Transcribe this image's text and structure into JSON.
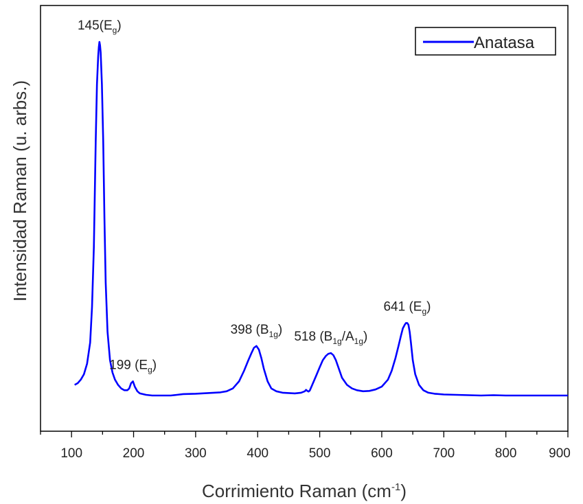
{
  "chart_data": {
    "type": "line",
    "title": "",
    "xlabel": "Corrimiento Raman (cm",
    "xlabel_sup": "-1",
    "xlabel_suffix": ")",
    "ylabel": "Intensidad Raman (u. arbs.)",
    "xlim": [
      50,
      900
    ],
    "ylim": [
      0,
      1
    ],
    "x_ticks": [
      100,
      200,
      300,
      400,
      500,
      600,
      700,
      800,
      900
    ],
    "y_ticks_shown": false,
    "grid": false,
    "legend": {
      "position": "top-right"
    },
    "series": [
      {
        "name": "Anatasa",
        "color": "#0000ff",
        "x": [
          105,
          110,
          115,
          120,
          125,
          130,
          133,
          136,
          139,
          141,
          143,
          144,
          145,
          146,
          147,
          149,
          151,
          153,
          155,
          158,
          162,
          166,
          170,
          175,
          180,
          185,
          190,
          193,
          196,
          199,
          202,
          206,
          210,
          220,
          230,
          240,
          250,
          260,
          270,
          280,
          300,
          320,
          340,
          350,
          360,
          370,
          378,
          385,
          390,
          394,
          398,
          402,
          406,
          410,
          416,
          422,
          430,
          440,
          450,
          460,
          470,
          476,
          478,
          480,
          482,
          484,
          488,
          494,
          500,
          505,
          510,
          514,
          518,
          522,
          526,
          530,
          536,
          544,
          552,
          560,
          570,
          580,
          590,
          600,
          610,
          616,
          622,
          627,
          631,
          634,
          637,
          639,
          641,
          643,
          645,
          647,
          650,
          654,
          660,
          667,
          675,
          685,
          700,
          720,
          740,
          760,
          780,
          800,
          820,
          840,
          860,
          880,
          900
        ],
        "y": [
          0.03,
          0.035,
          0.045,
          0.06,
          0.09,
          0.15,
          0.25,
          0.42,
          0.72,
          0.88,
          0.96,
          0.985,
          1.0,
          0.99,
          0.97,
          0.88,
          0.72,
          0.5,
          0.32,
          0.18,
          0.1,
          0.065,
          0.045,
          0.03,
          0.02,
          0.015,
          0.015,
          0.02,
          0.035,
          0.04,
          0.025,
          0.012,
          0.006,
          0.002,
          0.0,
          0.0,
          0.0,
          0.0,
          0.002,
          0.004,
          0.005,
          0.007,
          0.009,
          0.012,
          0.02,
          0.04,
          0.07,
          0.1,
          0.12,
          0.135,
          0.14,
          0.13,
          0.105,
          0.075,
          0.04,
          0.02,
          0.012,
          0.008,
          0.007,
          0.006,
          0.008,
          0.012,
          0.016,
          0.013,
          0.011,
          0.014,
          0.03,
          0.055,
          0.08,
          0.1,
          0.112,
          0.118,
          0.12,
          0.114,
          0.1,
          0.08,
          0.05,
          0.03,
          0.02,
          0.015,
          0.012,
          0.013,
          0.017,
          0.025,
          0.045,
          0.07,
          0.105,
          0.14,
          0.17,
          0.19,
          0.2,
          0.205,
          0.205,
          0.2,
          0.18,
          0.15,
          0.1,
          0.06,
          0.03,
          0.015,
          0.008,
          0.005,
          0.003,
          0.002,
          0.001,
          0.0,
          0.001,
          0.0,
          0.0,
          0.0,
          0.0,
          0.0,
          0.0
        ]
      }
    ],
    "annotations": [
      {
        "x": 145,
        "y": 1.0,
        "text": "145(E",
        "sub": "g",
        "suffix": ")"
      },
      {
        "x": 199,
        "y": 0.04,
        "text": "199 (E",
        "sub": "g",
        "suffix": ")"
      },
      {
        "x": 398,
        "y": 0.14,
        "text": "398 (B",
        "sub": "1g",
        "suffix": ")"
      },
      {
        "x": 518,
        "y": 0.12,
        "text": "518 (B",
        "sub": "1g",
        "mid": "/A",
        "sub2": "1g",
        "suffix": ")"
      },
      {
        "x": 641,
        "y": 0.205,
        "text": "641 (E",
        "sub": "g",
        "suffix": ")"
      }
    ]
  }
}
